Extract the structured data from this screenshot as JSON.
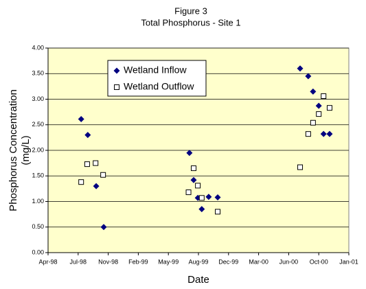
{
  "chart_data": {
    "type": "scatter",
    "title": "Figure 3",
    "subtitle": "Total Phosphorus - Site 1",
    "xlabel": "Date",
    "ylabel": [
      "Phosphorus Concentration",
      "(mg/L)"
    ],
    "xlim": [
      35900,
      36900
    ],
    "xticks": [
      {
        "value": 35900,
        "label": "Apr-98"
      },
      {
        "value": 36000,
        "label": "Jul-98"
      },
      {
        "value": 36100,
        "label": "Nov-98"
      },
      {
        "value": 36200,
        "label": "Feb-99"
      },
      {
        "value": 36300,
        "label": "May-99"
      },
      {
        "value": 36400,
        "label": "Aug-99"
      },
      {
        "value": 36500,
        "label": "Dec-99"
      },
      {
        "value": 36600,
        "label": "Mar-00"
      },
      {
        "value": 36700,
        "label": "Jun-00"
      },
      {
        "value": 36800,
        "label": "Oct-00"
      },
      {
        "value": 36900,
        "label": "Jan-01"
      }
    ],
    "ylim": [
      0,
      4
    ],
    "yticks": [
      {
        "value": 0,
        "label": "0.00"
      },
      {
        "value": 0.5,
        "label": "0.50"
      },
      {
        "value": 1,
        "label": "1.00"
      },
      {
        "value": 1.5,
        "label": "1.50"
      },
      {
        "value": 2,
        "label": "2.00"
      },
      {
        "value": 2.5,
        "label": "2.50"
      },
      {
        "value": 3,
        "label": "3.00"
      },
      {
        "value": 3.5,
        "label": "3.50"
      },
      {
        "value": 4,
        "label": "4.00"
      }
    ],
    "grid": true,
    "background": "#ffffcc",
    "series": [
      {
        "name": "Wetland Inflow",
        "color": "#000080",
        "marker": "diamond",
        "x": [
          36010,
          36032,
          36060,
          36085,
          36370,
          36384,
          36398,
          36411,
          36434,
          36464,
          36738,
          36765,
          36781,
          36800,
          36816,
          36836
        ],
        "values": [
          2.61,
          2.3,
          1.3,
          0.5,
          1.95,
          1.42,
          1.07,
          0.85,
          1.09,
          1.08,
          3.6,
          3.45,
          3.15,
          2.87,
          2.32,
          2.32
        ]
      },
      {
        "name": "Wetland Outflow",
        "color": "#000000",
        "marker": "square",
        "x": [
          36010,
          36030,
          36058,
          36083,
          36367,
          36384,
          36398,
          36411,
          36464,
          36738,
          36765,
          36781,
          36800,
          36816,
          36836
        ],
        "values": [
          1.38,
          1.73,
          1.75,
          1.52,
          1.18,
          1.65,
          1.31,
          1.07,
          0.8,
          1.67,
          2.32,
          2.54,
          2.71,
          3.06,
          2.83
        ]
      }
    ]
  }
}
